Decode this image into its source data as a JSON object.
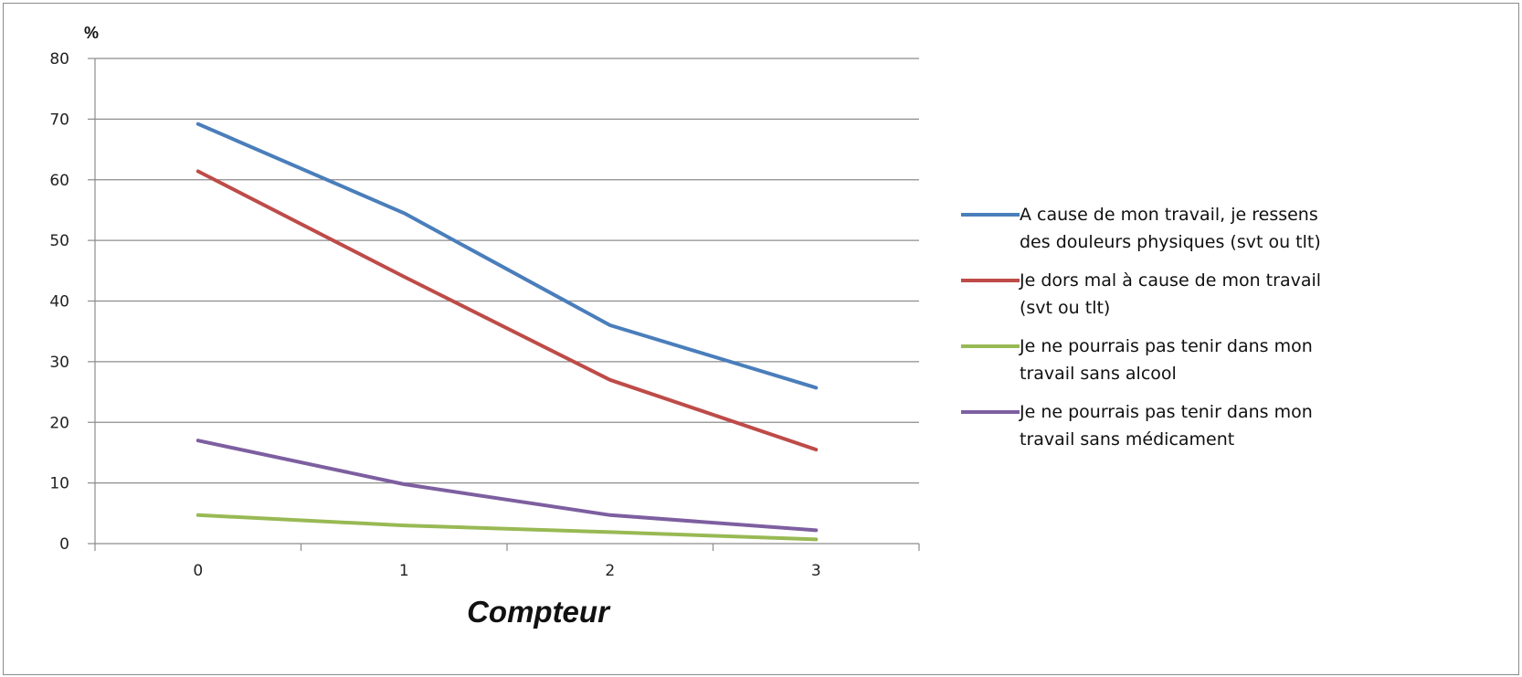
{
  "chart_data": {
    "type": "line",
    "xlabel": "Compteur",
    "ylabel": "%",
    "categories": [
      "0",
      "1",
      "2",
      "3"
    ],
    "ylim": [
      0,
      80
    ],
    "yticks": [
      "0",
      "10",
      "20",
      "30",
      "40",
      "50",
      "60",
      "70",
      "80"
    ],
    "grid": "horizontal",
    "legend_position": "right",
    "series": [
      {
        "name": "A cause de mon travail, je ressens des douleurs physiques (svt ou tlt)",
        "name_lines": [
          "A cause de mon travail, je ressens",
          "des douleurs physiques (svt ou tlt)"
        ],
        "color": "#4a7ebb",
        "values": [
          69.2,
          54.5,
          36.0,
          25.7
        ]
      },
      {
        "name": "Je dors mal à cause de mon travail (svt ou tlt)",
        "name_lines": [
          "Je dors mal à cause de mon travail",
          "(svt ou tlt)"
        ],
        "color": "#be4b48",
        "values": [
          61.4,
          44.0,
          27.0,
          15.5
        ]
      },
      {
        "name": "Je ne pourrais pas tenir dans mon travail sans alcool",
        "name_lines": [
          "Je ne pourrais pas tenir dans mon",
          "travail sans alcool"
        ],
        "color": "#98b954",
        "values": [
          4.7,
          3.0,
          1.9,
          0.7
        ]
      },
      {
        "name": "Je ne pourrais pas tenir dans mon travail sans médicament",
        "name_lines": [
          "Je ne pourrais pas tenir dans mon",
          "travail sans médicament"
        ],
        "color": "#7d5fa0",
        "values": [
          17.0,
          9.8,
          4.7,
          2.2
        ]
      }
    ]
  }
}
